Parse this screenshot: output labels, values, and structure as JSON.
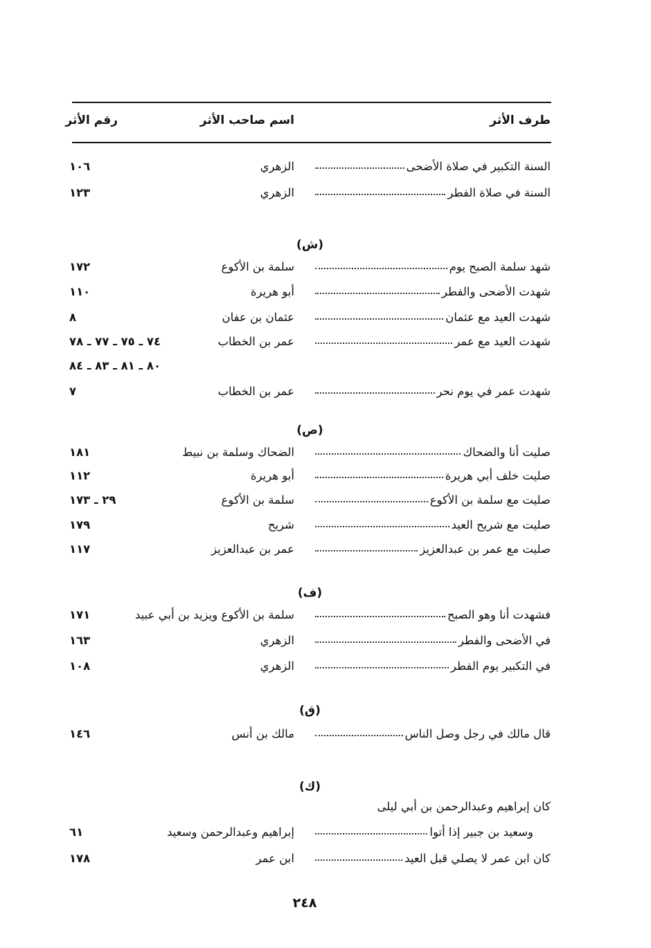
{
  "header": {
    "col_title": "طرف الأثر",
    "col_name": "اسم صاحب الأثر",
    "col_number": "رقم الأثر"
  },
  "sections": [
    {
      "letter": "",
      "entries": [
        {
          "title": "السنة التكبير في صلاة الأضحى",
          "name": "الزهري",
          "number": "١٠٦"
        },
        {
          "title": "السنة في صلاة الفطر",
          "name": "الزهري",
          "number": "١٢٣"
        }
      ]
    },
    {
      "letter": "(ش)",
      "entries": [
        {
          "title": "شهد سلمة الصبح يوم",
          "name": "سلمة بن الأكوع",
          "number": "١٧٢"
        },
        {
          "title": "شهدت الأضحى والفطر",
          "name": "أبو هريرة",
          "number": "١١٠"
        },
        {
          "title": "شهدت العيد مع عثمان",
          "name": "عثمان بن عفان",
          "number": "٨"
        },
        {
          "title": "شهدت العيد مع عمر",
          "name": "عمر بن الخطاب",
          "number": "٧٤ ـ ٧٥ ـ ٧٧ ـ ٧٨"
        },
        {
          "title": "",
          "name": "",
          "number": "٨٠ ـ ٨١ ـ ٨٣ ـ ٨٤"
        },
        {
          "title": "شهدت عمر في يوم نحر",
          "name": "عمر بن الخطاب",
          "number": "٧"
        }
      ]
    },
    {
      "letter": "(ص)",
      "entries": [
        {
          "title": "صليت أنا والضحاك",
          "name": "الضحاك وسلمة بن نبيط",
          "number": "١٨١"
        },
        {
          "title": "صليت خلف أبي هريرة",
          "name": "أبو هريرة",
          "number": "١١٢"
        },
        {
          "title": "صليت مع سلمة بن الأكوع",
          "name": "سلمة بن الأكوع",
          "number": "٢٩ ـ ١٧٣"
        },
        {
          "title": "صليت مع شريح العيد",
          "name": "شريح",
          "number": "١٧٩"
        },
        {
          "title": "صليت مع عمر بن عبدالعزيز",
          "name": "عمر بن عبدالعزيز",
          "number": "١١٧"
        }
      ]
    },
    {
      "letter": "(ف)",
      "entries": [
        {
          "title": "فشهدت أنا وهو الصبح",
          "name": "سلمة بن الأكوع ويزيد بن أبي عبيد",
          "number": "١٧١"
        },
        {
          "title": "في الأضحى والفطر",
          "name": "الزهري",
          "number": "١٦٣"
        },
        {
          "title": "في التكبير يوم الفطر",
          "name": "الزهري",
          "number": "١٠٨"
        }
      ]
    },
    {
      "letter": "(ق)",
      "entries": [
        {
          "title": "قال مالك في رجل وصل الناس",
          "name": "مالك بن أنس",
          "number": "١٤٦"
        }
      ]
    },
    {
      "letter": "(ك)",
      "entries": [
        {
          "title": "كان إبراهيم وعبدالرحمن بن أبي ليلى",
          "name": "",
          "number": "",
          "nodots": true
        },
        {
          "title": "وسعيد بن جبير إذا أتوا",
          "name": "إبراهيم وعبدالرحمن وسعيد",
          "number": "٦١",
          "indent": true
        },
        {
          "title": "كان ابن عمر لا يصلي قبل العيد",
          "name": "ابن عمر",
          "number": "١٧٨"
        }
      ]
    }
  ],
  "page_number": "٢٤٨"
}
